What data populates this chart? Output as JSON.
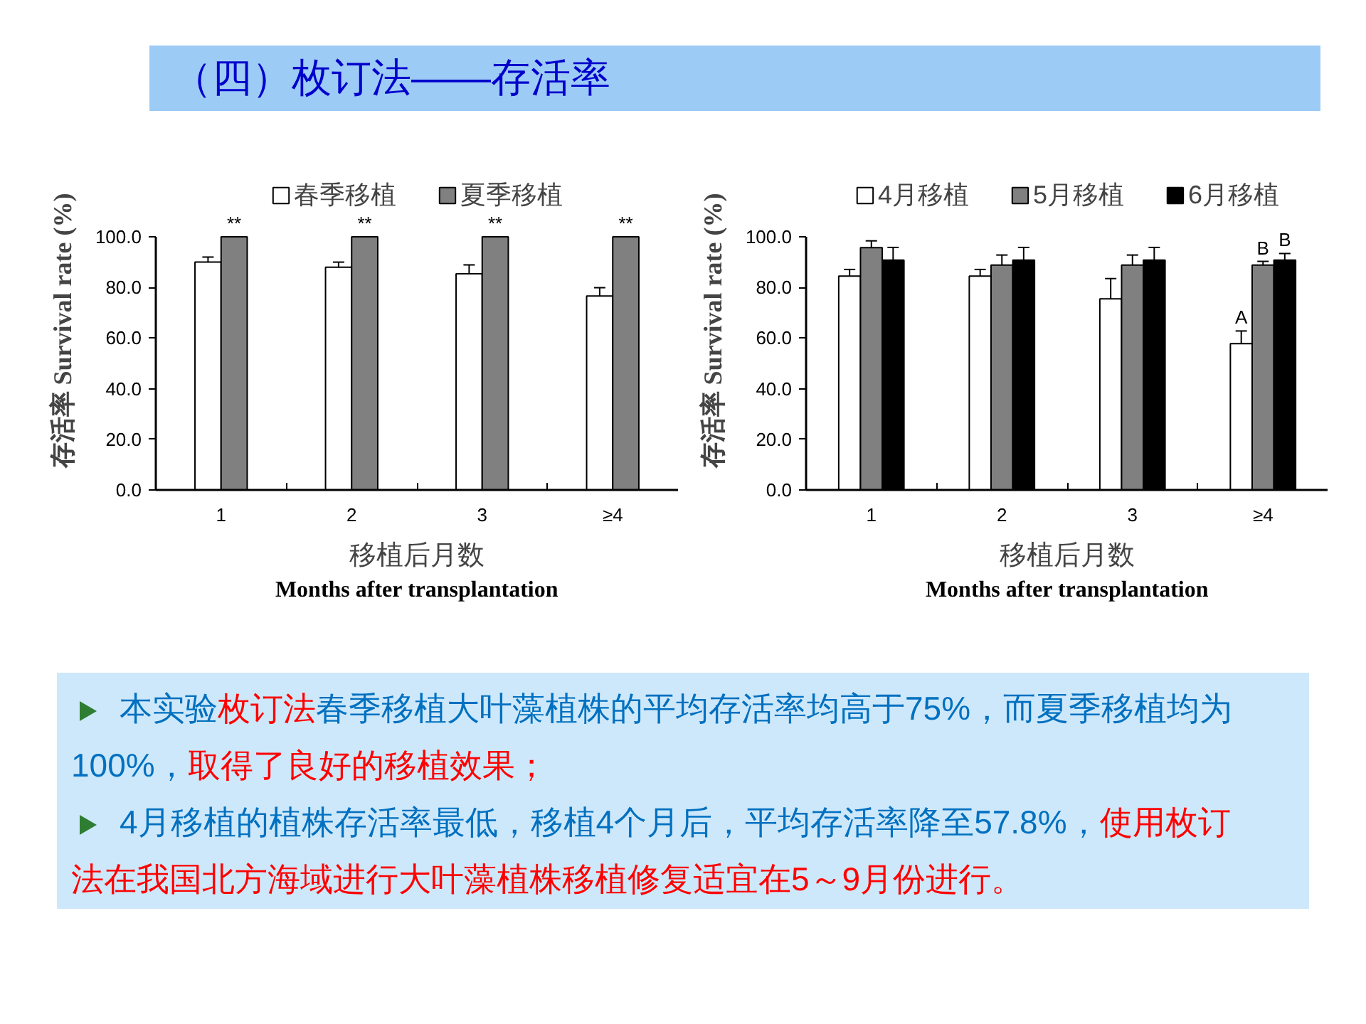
{
  "chart_data": [
    {
      "type": "other",
      "title": "（四）枚订法——存活率"
    },
    {
      "type": "bar",
      "categories": [
        "1",
        "2",
        "3",
        "≥4"
      ],
      "series": [
        {
          "name": "春季移植",
          "color": "#ffffff",
          "values": [
            90,
            88,
            85.4,
            76.6
          ],
          "errors": [
            2,
            2,
            3.5,
            3.3
          ]
        },
        {
          "name": "夏季移植",
          "color": "#808080",
          "values": [
            100,
            100,
            100,
            100
          ]
        }
      ],
      "ylim": [
        0,
        100
      ],
      "yticks": [
        {
          "value": 0,
          "label": "0.0"
        },
        {
          "value": 20,
          "label": "20.0"
        },
        {
          "value": 40,
          "label": "40.0"
        },
        {
          "value": 60,
          "label": "60.0"
        },
        {
          "value": 80,
          "label": "80.0"
        },
        {
          "value": 100,
          "label": "100.0"
        }
      ],
      "ylabel": "存活率 Survival rate (%)",
      "xlabel": "移植后月数\nMonths after transplantation",
      "legend": "top",
      "grid": false,
      "annotations": [
        {
          "text": "**",
          "x": "1",
          "y": 100
        },
        {
          "text": "**",
          "x": "2",
          "y": 100
        },
        {
          "text": "**",
          "x": "3",
          "y": 100
        },
        {
          "text": "**",
          "x": "≥4",
          "y": 100
        }
      ]
    },
    {
      "type": "bar",
      "categories": [
        "1",
        "2",
        "3",
        "≥4"
      ],
      "series": [
        {
          "name": "4月移植",
          "color": "#ffffff",
          "values": [
            84.5,
            84.5,
            75.5,
            57.8
          ],
          "errors": [
            2.6,
            2.6,
            8,
            5
          ],
          "value_labels": [
            null,
            null,
            null,
            "A"
          ]
        },
        {
          "name": "5月移植",
          "color": "#808080",
          "values": [
            95.7,
            88.8,
            88.8,
            88.8
          ],
          "errors": [
            2.7,
            4,
            4,
            1.5
          ],
          "value_labels": [
            null,
            null,
            null,
            "B"
          ]
        },
        {
          "name": "6月移植",
          "color": "#000000",
          "values": [
            90.8,
            90.8,
            90.8,
            90.8
          ],
          "errors": [
            5,
            5,
            5,
            2.6
          ],
          "value_labels": [
            null,
            null,
            null,
            "B"
          ]
        }
      ],
      "ylim": [
        0,
        100
      ],
      "yticks": [
        {
          "value": 0,
          "label": "0.0"
        },
        {
          "value": 20,
          "label": "20.0"
        },
        {
          "value": 40,
          "label": "40.0"
        },
        {
          "value": 60,
          "label": "60.0"
        },
        {
          "value": 80,
          "label": "80.0"
        },
        {
          "value": 100,
          "label": "100.0"
        }
      ],
      "ylabel": "存活率 Survival rate (%)",
      "xlabel": "移植后月数\nMonths after transplantation",
      "legend": "top",
      "grid": false
    },
    {
      "type": "other",
      "annotations": [
        "本实验",
        "枚订法",
        "春季移植大叶藻植株的平均存活率均高于75%，而夏季移植均为",
        "100%，",
        "取得了良好的移植效果；"
      ],
      "colors": [
        "#0070c0",
        "#ff0000",
        "#0070c0",
        "#0070c0",
        "#ff0000"
      ]
    },
    {
      "type": "other",
      "annotations": [
        "4月移植的植株存活率最低，移植4个月后，平均存活率降至57.8%，",
        "使用枚订",
        "法在我国北方海域进行大叶藻植株移植修复适宜在5～9月份进行。"
      ],
      "colors": [
        "#0070c0",
        "#ff0000",
        "#ff0000"
      ]
    }
  ]
}
